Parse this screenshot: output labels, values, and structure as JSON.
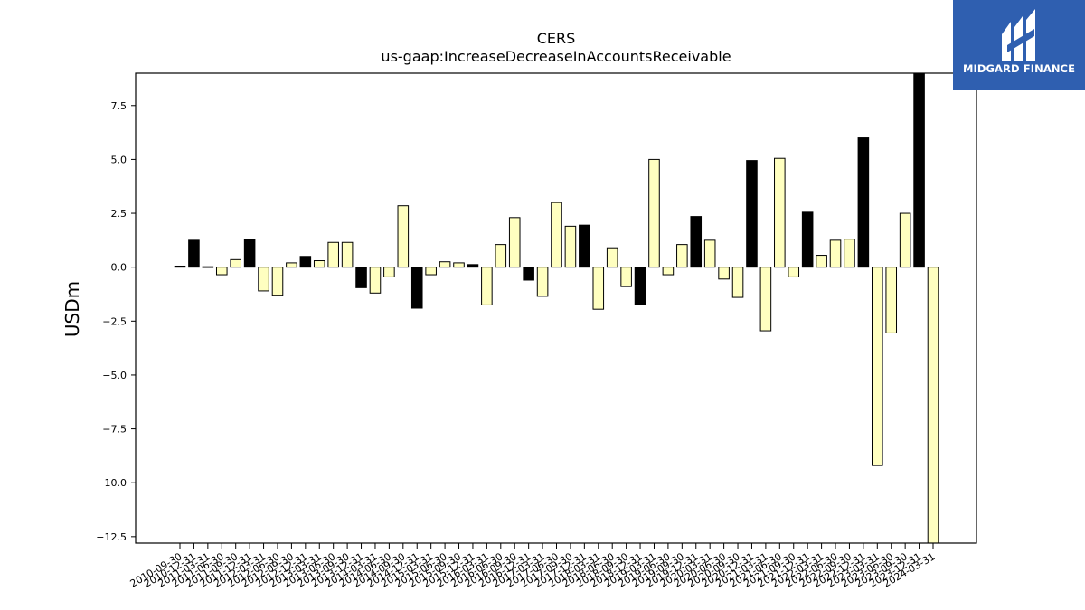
{
  "chart_data": {
    "type": "bar",
    "title": "CERS",
    "subtitle": "us-gaap:IncreaseDecreaseInAccountsReceivable",
    "ylabel": "USDm",
    "xlabel": "",
    "ylim": [
      -12.8,
      9.0
    ],
    "yticks": [
      7.5,
      5.0,
      2.5,
      0.0,
      -2.5,
      -5.0,
      -7.5,
      -10.0,
      -12.5
    ],
    "ytick_labels": [
      "7.5",
      "5.0",
      "2.5",
      "0.0",
      "−2.5",
      "−5.0",
      "−7.5",
      "−10.0",
      "−12.5"
    ],
    "grid": false,
    "colors": {
      "quarterly": "#ffffc0",
      "annual": "#000000"
    },
    "categories": [
      "2010-09-30",
      "2010-12-31",
      "2011-03-31",
      "2011-06-30",
      "2011-09-30",
      "2011-12-31",
      "2012-03-31",
      "2012-06-30",
      "2012-09-30",
      "2012-12-31",
      "2013-03-31",
      "2013-06-30",
      "2013-09-30",
      "2013-12-31",
      "2014-03-31",
      "2014-06-30",
      "2014-09-30",
      "2014-12-31",
      "2015-03-31",
      "2015-06-30",
      "2015-09-30",
      "2015-12-31",
      "2016-03-31",
      "2016-06-30",
      "2016-09-30",
      "2016-12-31",
      "2017-03-31",
      "2017-06-30",
      "2017-09-30",
      "2017-12-31",
      "2018-03-31",
      "2018-06-30",
      "2018-09-30",
      "2018-12-31",
      "2019-03-31",
      "2019-06-30",
      "2019-09-30",
      "2019-12-31",
      "2020-03-31",
      "2020-06-30",
      "2020-09-30",
      "2020-12-31",
      "2021-03-31",
      "2021-06-30",
      "2021-09-30",
      "2021-12-31",
      "2022-03-31",
      "2022-06-30",
      "2022-09-30",
      "2022-12-31",
      "2023-03-31",
      "2023-06-30",
      "2023-09-30",
      "2023-12-31",
      "2024-03-31"
    ],
    "values": [
      0.05,
      1.25,
      0.02,
      -0.35,
      0.35,
      1.3,
      -1.1,
      -1.3,
      0.2,
      0.5,
      0.3,
      1.15,
      1.15,
      -0.95,
      -1.2,
      -0.45,
      2.85,
      -1.9,
      -0.35,
      0.25,
      0.2,
      0.12,
      -1.75,
      1.05,
      2.3,
      -0.6,
      -1.35,
      3.0,
      1.9,
      1.95,
      -1.95,
      0.9,
      -0.9,
      -1.75,
      5.0,
      -0.35,
      1.05,
      2.35,
      1.25,
      -0.55,
      -1.4,
      4.95,
      -2.95,
      5.05,
      -0.45,
      2.55,
      0.55,
      1.25,
      1.3,
      6.0,
      -9.2,
      -3.05,
      2.5,
      9.0,
      -12.8
    ],
    "is_annual": [
      true,
      true,
      false,
      false,
      false,
      true,
      false,
      false,
      false,
      true,
      false,
      false,
      false,
      true,
      false,
      false,
      false,
      true,
      false,
      false,
      false,
      true,
      false,
      false,
      false,
      true,
      false,
      false,
      false,
      true,
      false,
      false,
      false,
      true,
      false,
      false,
      false,
      true,
      false,
      false,
      false,
      true,
      false,
      false,
      false,
      true,
      false,
      false,
      false,
      true,
      false,
      false,
      false,
      true,
      false
    ]
  },
  "brand": {
    "name": "MIDGARD FINANCE",
    "color": "#2f5fb0"
  }
}
